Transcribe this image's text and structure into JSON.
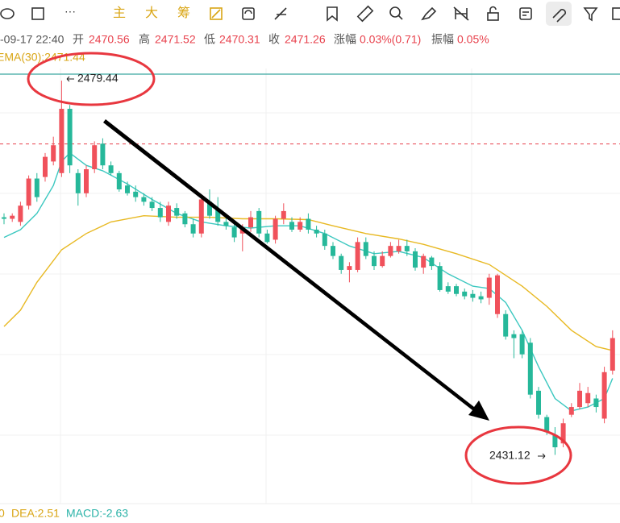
{
  "toolbar": {
    "labels": [
      "···",
      "主",
      "大",
      "筹"
    ]
  },
  "header": {
    "date": "-09-17 22:40",
    "open_label": "开",
    "open": "2470.56",
    "high_label": "高",
    "high": "2471.52",
    "low_label": "低",
    "low": "2470.31",
    "close_label": "收",
    "close": "2471.26",
    "change_label": "涨幅",
    "change": "0.03%(0.71)",
    "amplitude_label": "振幅",
    "amplitude": "0.05%"
  },
  "legend_text": "EMA(30):2471.44",
  "bottom": {
    "dif": "0",
    "dea": "DEA:2.51",
    "macd": "MACD:-2.63"
  },
  "chart_data": {
    "type": "candlestick",
    "ylim": [
      2424.3,
      2483.4
    ],
    "up_color": "#f0515b",
    "down_color": "#26b89a",
    "last_price": 2471.26,
    "high_label": "2479.44",
    "low_label": "2431.12",
    "open": [
      2461.8,
      2461.6,
      2461.2,
      2463.3,
      2466.8,
      2467.0,
      2469.0,
      2467.5,
      2475.8,
      2467.5,
      2464.9,
      2468.0,
      2471.3,
      2468.5,
      2467.5,
      2465.9,
      2465.1,
      2464.4,
      2463.8,
      2463.0,
      2461.2,
      2463.0,
      2462.3,
      2460.9,
      2459.7,
      2463.8,
      2462.8,
      2461.2,
      2460.5,
      2459.7,
      2460.5,
      2462.6,
      2459.7,
      2458.9,
      2461.6,
      2461.2,
      2460.2,
      2461.6,
      2460.2,
      2459.7,
      2458.1,
      2456.8,
      2455.0,
      2455.0,
      2458.6,
      2456.8,
      2455.5,
      2456.8,
      2457.4,
      2458.1,
      2457.4,
      2455.3,
      2456.6,
      2455.5,
      2452.9,
      2452.9,
      2452.2,
      2451.9,
      2451.6,
      2451.4,
      2449.3,
      2449.3,
      2446.7,
      2446.7,
      2445.6,
      2439.4,
      2436.0,
      2433.7,
      2432.6,
      2436.3,
      2437.3,
      2437.8,
      2438.4,
      2435.8,
      2442.0
    ],
    "high": [
      2462.3,
      2462.3,
      2463.8,
      2467.2,
      2467.5,
      2470.1,
      2472.2,
      2479.44,
      2476.3,
      2468.0,
      2468.5,
      2471.6,
      2472.0,
      2469.0,
      2467.8,
      2466.4,
      2465.9,
      2464.9,
      2464.4,
      2463.8,
      2463.8,
      2463.6,
      2462.6,
      2461.6,
      2464.4,
      2465.4,
      2464.4,
      2461.8,
      2460.9,
      2460.9,
      2462.6,
      2463.0,
      2460.2,
      2462.0,
      2463.6,
      2461.8,
      2461.8,
      2462.3,
      2460.7,
      2460.2,
      2458.6,
      2457.1,
      2456.0,
      2459.2,
      2459.2,
      2457.4,
      2457.4,
      2458.6,
      2458.9,
      2458.9,
      2457.8,
      2457.1,
      2456.8,
      2456.0,
      2453.4,
      2453.2,
      2452.6,
      2452.4,
      2452.2,
      2454.5,
      2454.5,
      2449.8,
      2447.2,
      2447.2,
      2446.2,
      2439.9,
      2436.3,
      2434.7,
      2435.8,
      2437.8,
      2440.4,
      2439.9,
      2438.9,
      2442.5,
      2447.2
    ],
    "low": [
      2460.9,
      2461.2,
      2460.7,
      2462.8,
      2463.8,
      2466.4,
      2468.5,
      2467.0,
      2467.5,
      2463.3,
      2464.4,
      2467.5,
      2468.0,
      2467.2,
      2465.1,
      2464.6,
      2463.8,
      2463.3,
      2462.6,
      2461.2,
      2460.7,
      2461.6,
      2460.5,
      2459.2,
      2459.2,
      2461.6,
      2460.7,
      2460.2,
      2458.6,
      2457.4,
      2459.9,
      2459.2,
      2458.4,
      2458.4,
      2460.9,
      2459.9,
      2459.9,
      2459.7,
      2459.2,
      2457.6,
      2456.4,
      2454.5,
      2453.4,
      2454.7,
      2456.4,
      2455.0,
      2455.3,
      2456.6,
      2457.1,
      2456.8,
      2454.9,
      2454.5,
      2455.0,
      2452.2,
      2451.9,
      2451.6,
      2451.2,
      2450.9,
      2450.7,
      2450.5,
      2448.8,
      2446.0,
      2443.6,
      2443.6,
      2438.4,
      2435.8,
      2433.7,
      2431.12,
      2432.1,
      2436.0,
      2437.0,
      2437.3,
      2436.6,
      2435.2,
      2441.5
    ],
    "close": [
      2461.6,
      2462.0,
      2463.3,
      2466.8,
      2464.4,
      2469.6,
      2471.1,
      2475.8,
      2468.5,
      2464.9,
      2468.0,
      2471.1,
      2468.5,
      2467.5,
      2465.4,
      2464.9,
      2464.4,
      2463.8,
      2463.0,
      2461.8,
      2463.3,
      2462.0,
      2460.9,
      2459.7,
      2464.1,
      2462.0,
      2461.2,
      2460.7,
      2459.2,
      2460.5,
      2461.8,
      2459.7,
      2458.6,
      2461.6,
      2462.6,
      2460.2,
      2461.2,
      2460.2,
      2459.7,
      2458.1,
      2456.8,
      2455.0,
      2455.5,
      2458.6,
      2456.8,
      2455.5,
      2456.8,
      2458.1,
      2458.1,
      2457.4,
      2455.3,
      2456.8,
      2455.5,
      2452.4,
      2452.2,
      2451.9,
      2451.6,
      2451.4,
      2451.2,
      2454.0,
      2454.3,
      2446.4,
      2446.2,
      2444.1,
      2438.9,
      2436.3,
      2434.2,
      2432.1,
      2435.2,
      2437.3,
      2439.4,
      2439.1,
      2437.3,
      2441.8,
      2446.2
    ],
    "lines": [
      {
        "color": "#3cc8c0",
        "x": [
          0,
          2,
          4,
          6,
          7,
          8,
          10,
          12,
          15,
          18,
          21,
          24,
          27,
          30,
          33,
          36,
          39,
          42,
          45,
          48,
          51,
          54,
          57,
          59,
          61,
          63,
          65,
          67,
          69,
          71,
          73,
          74
        ],
        "values": [
          2459.2,
          2460.2,
          2462.3,
          2465.9,
          2469.0,
          2470.1,
          2468.5,
          2467.8,
          2466.1,
          2464.1,
          2462.3,
          2461.2,
          2460.7,
          2460.4,
          2460.7,
          2460.7,
          2459.7,
          2458.1,
          2457.1,
          2457.4,
          2456.6,
          2454.5,
          2452.9,
          2452.6,
          2450.8,
          2447.2,
          2442.5,
          2438.4,
          2436.8,
          2437.3,
          2438.4,
          2441.0
        ]
      },
      {
        "color": "#e8b923",
        "x": [
          0,
          2,
          4,
          7,
          10,
          13,
          17,
          21,
          25,
          29,
          33,
          37,
          40,
          44,
          48,
          51,
          55,
          59,
          63,
          66,
          69,
          72,
          74
        ],
        "values": [
          2447.7,
          2449.8,
          2453.4,
          2457.6,
          2459.7,
          2461.2,
          2462.0,
          2461.8,
          2461.8,
          2461.6,
          2461.6,
          2461.5,
          2460.7,
          2459.7,
          2459.0,
          2458.3,
          2457.1,
          2455.7,
          2452.9,
          2450.3,
          2447.2,
          2445.1,
          2444.6
        ]
      }
    ]
  }
}
